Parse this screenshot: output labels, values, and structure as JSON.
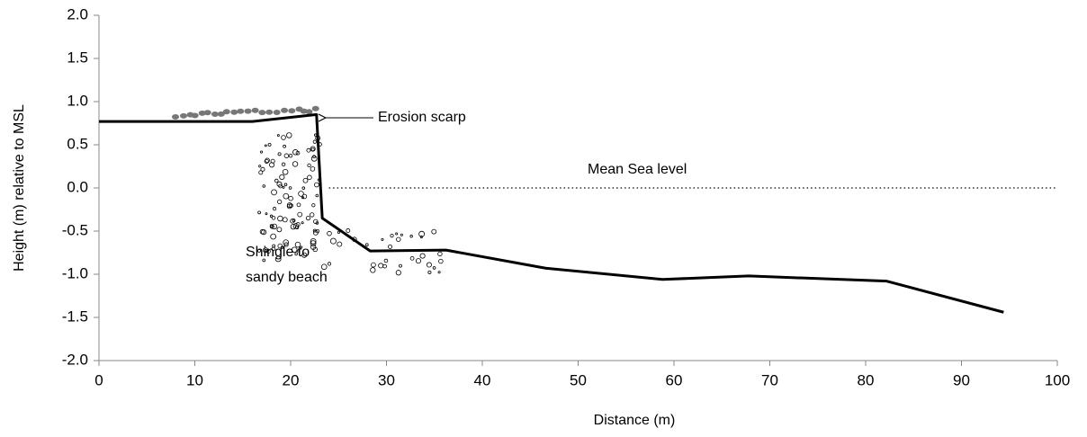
{
  "chart_data": {
    "type": "line",
    "x_label": "Distance (m)",
    "y_label": "Height (m) relative to MSL",
    "x": [
      0,
      16,
      22.7,
      23.3,
      28.3,
      36.2,
      46.6,
      58.8,
      67.8,
      82.2,
      94.4
    ],
    "values": [
      0.77,
      0.77,
      0.85,
      -0.35,
      -0.73,
      -0.72,
      -0.93,
      -1.06,
      -1.02,
      -1.08,
      -1.44
    ],
    "color": "#000000",
    "xlim": [
      0,
      100
    ],
    "xticks": [
      0,
      10,
      20,
      30,
      40,
      50,
      60,
      70,
      80,
      90,
      100
    ],
    "ylim": [
      -2,
      2
    ],
    "yticks": [
      {
        "value": 2,
        "label": "2.0"
      },
      {
        "value": 1.5,
        "label": "1.5"
      },
      {
        "value": 1,
        "label": "1.0"
      },
      {
        "value": 0.5,
        "label": "0.5"
      },
      {
        "value": 0,
        "label": "0.0"
      },
      {
        "value": -0.5,
        "label": "-0.5"
      },
      {
        "value": -1,
        "label": "-1.0"
      },
      {
        "value": -1.5,
        "label": "-1.5"
      },
      {
        "value": -2,
        "label": "-2.0"
      }
    ],
    "grid": false,
    "hline": {
      "value": 0,
      "x": [
        24,
        100
      ],
      "style": "dotted"
    },
    "annotations": {
      "scarp": "Erosion scarp",
      "msl": "Mean Sea level",
      "beach": [
        "Shingle to",
        "sandy beach"
      ]
    }
  }
}
